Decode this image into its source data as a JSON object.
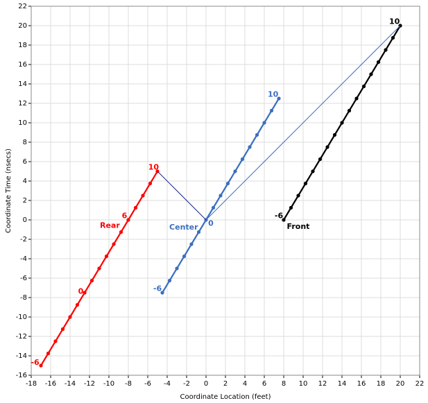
{
  "chart_data": {
    "type": "line",
    "xlabel": "Coordinate Location (feet)",
    "ylabel": "Coordinate Time (nsecs)",
    "xlim": [
      -18,
      22
    ],
    "xticks": [
      -18,
      -16,
      -14,
      -12,
      -10,
      -8,
      -6,
      -4,
      -2,
      0,
      2,
      4,
      6,
      8,
      10,
      12,
      14,
      16,
      18,
      20,
      22
    ],
    "ylim": [
      -16,
      22
    ],
    "yticks": [
      -16,
      -14,
      -12,
      -10,
      -8,
      -6,
      -4,
      -2,
      0,
      2,
      4,
      6,
      8,
      10,
      12,
      14,
      16,
      18,
      20,
      22
    ],
    "grid": true,
    "series": [
      {
        "color": "#ff0000",
        "markers": true,
        "x": [
          -17,
          -16.25,
          -15.5,
          -14.75,
          -14,
          -13.25,
          -12.5,
          -11.75,
          -11,
          -10.25,
          -9.5,
          -8.75,
          -8,
          -7.25,
          -6.5,
          -5.75,
          -5
        ],
        "values": [
          -15,
          -13.75,
          -12.5,
          -11.25,
          -10,
          -8.75,
          -7.5,
          -6.25,
          -5,
          -3.75,
          -2.5,
          -1.25,
          0,
          1.25,
          2.5,
          3.75,
          5
        ]
      },
      {
        "color": "#3a6fbf",
        "markers": true,
        "x": [
          -4.5,
          -3.75,
          -3,
          -2.25,
          -1.5,
          -0.75,
          0,
          0.75,
          1.5,
          2.25,
          3,
          3.75,
          4.5,
          5.25,
          6,
          6.75,
          7.5
        ],
        "values": [
          -7.5,
          -6.25,
          -5,
          -3.75,
          -2.5,
          -1.25,
          0,
          1.25,
          2.5,
          3.75,
          5,
          6.25,
          7.5,
          8.75,
          10,
          11.25,
          12.5
        ]
      },
      {
        "color": "#000000",
        "markers": true,
        "x": [
          8,
          8.75,
          9.5,
          10.25,
          11,
          11.75,
          12.5,
          13.25,
          14,
          14.75,
          15.5,
          16.25,
          17,
          17.75,
          18.5,
          19.25,
          20
        ],
        "values": [
          0,
          1.25,
          2.5,
          3.75,
          5,
          6.25,
          7.5,
          8.75,
          10,
          11.25,
          12.5,
          13.75,
          15,
          16.25,
          17.5,
          18.75,
          20
        ]
      },
      {
        "color": "#1a2a8a",
        "markers": false,
        "x": [
          -5,
          0
        ],
        "values": [
          5,
          0
        ]
      },
      {
        "color": "#3a6fbf",
        "markers": false,
        "x": [
          0,
          20
        ],
        "values": [
          0,
          20
        ]
      }
    ],
    "annotations": [
      {
        "text": "-6",
        "x": -17.6,
        "y": -14.7,
        "color": "#ff0000"
      },
      {
        "text": "0",
        "x": -12.9,
        "y": -7.4,
        "color": "#ff0000"
      },
      {
        "text": "6",
        "x": -8.4,
        "y": 0.4,
        "color": "#ff0000"
      },
      {
        "text": "Rear",
        "x": -9.9,
        "y": -0.6,
        "color": "#ff0000"
      },
      {
        "text": "10",
        "x": -5.4,
        "y": 5.4,
        "color": "#ff0000"
      },
      {
        "text": "-6",
        "x": -5,
        "y": -7.1,
        "color": "#3a6fbf"
      },
      {
        "text": "Center",
        "x": -2.3,
        "y": -0.8,
        "color": "#3a6fbf"
      },
      {
        "text": "0",
        "x": 0.5,
        "y": -0.4,
        "color": "#3a6fbf"
      },
      {
        "text": "10",
        "x": 6.9,
        "y": 12.9,
        "color": "#3a6fbf"
      },
      {
        "text": "-6",
        "x": 7.5,
        "y": 0.4,
        "color": "#000000"
      },
      {
        "text": "Front",
        "x": 9.5,
        "y": -0.7,
        "color": "#000000"
      },
      {
        "text": "10",
        "x": 19.4,
        "y": 20.4,
        "color": "#000000"
      }
    ]
  }
}
